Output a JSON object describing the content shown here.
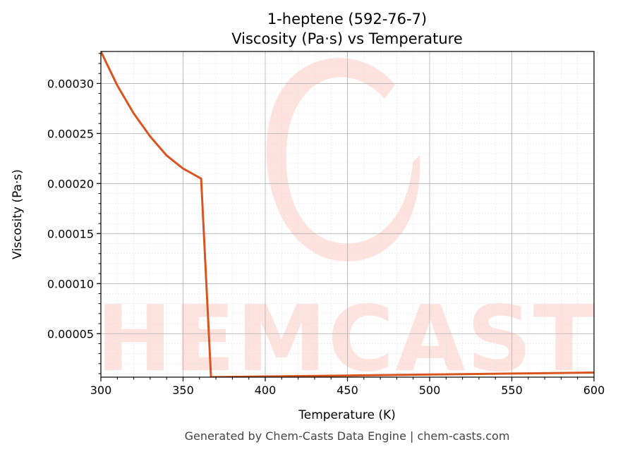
{
  "chart_data": {
    "type": "line",
    "title": "1-heptene (592-76-7)",
    "subtitle": "Viscosity (Pa·s) vs Temperature",
    "xlabel": "Temperature (K)",
    "ylabel": "Viscosity (Pa·s)",
    "xlim": [
      300,
      600
    ],
    "ylim": [
      6.5e-06,
      0.000332
    ],
    "xticks": [
      300,
      350,
      400,
      450,
      500,
      550,
      600
    ],
    "xtick_labels": [
      "300",
      "350",
      "400",
      "450",
      "500",
      "550",
      "600"
    ],
    "yticks": [
      5e-05,
      0.0001,
      0.00015,
      0.0002,
      0.00025,
      0.0003
    ],
    "ytick_labels": [
      "0.00005",
      "0.00010",
      "0.00015",
      "0.00020",
      "0.00025",
      "0.00030"
    ],
    "grid": true,
    "minor_grid": true,
    "line_color": "#d9541f",
    "series": [
      {
        "x": [
          300,
          310,
          320,
          330,
          340,
          350,
          361,
          367,
          400,
          450,
          500,
          550,
          600
        ],
        "values": [
          0.000332,
          0.000298,
          0.00027,
          0.000247,
          0.000228,
          0.000215,
          0.000205,
          6.5e-06,
          7.2e-06,
          8.1e-06,
          9.1e-06,
          1.01e-05,
          1.11e-05
        ]
      }
    ]
  },
  "watermark": {
    "text": "CHEMCASTS",
    "color": "#fde2de"
  },
  "footer": {
    "text": "Generated by Chem-Casts Data Engine | chem-casts.com"
  }
}
